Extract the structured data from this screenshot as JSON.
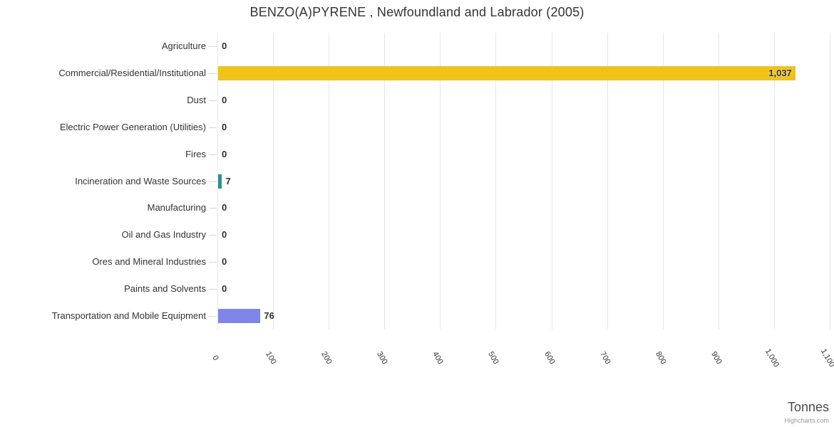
{
  "header": {
    "title": "BENZO(A)PYRENE , Newfoundland and Labrador (2005)"
  },
  "footer": {
    "axis_title": "Tonnes",
    "credit": "Highcharts.com"
  },
  "chart_data": {
    "type": "bar",
    "orientation": "horizontal",
    "title": "BENZO(A)PYRENE , Newfoundland and Labrador (2005)",
    "categories": [
      "Agriculture",
      "Commercial/Residential/Institutional",
      "Dust",
      "Electric Power Generation (Utilities)",
      "Fires",
      "Incineration and Waste Sources",
      "Manufacturing",
      "Oil and Gas Industry",
      "Ores and Mineral Industries",
      "Paints and Solvents",
      "Transportation and Mobile Equipment"
    ],
    "values": [
      0,
      1037,
      0,
      0,
      0,
      7,
      0,
      0,
      0,
      0,
      76
    ],
    "data_labels": [
      "0",
      "1,037",
      "0",
      "0",
      "0",
      "7",
      "0",
      "0",
      "0",
      "0",
      "76"
    ],
    "point_colors": [
      null,
      "#efc318",
      null,
      null,
      null,
      "#2b908f",
      null,
      null,
      null,
      null,
      "#8085e9"
    ],
    "xlabel": "Tonnes",
    "ylabel": "",
    "xlim": [
      0,
      1100
    ],
    "x_ticks": [
      0,
      100,
      200,
      300,
      400,
      500,
      600,
      700,
      800,
      900,
      1000,
      1100
    ],
    "x_tick_labels": [
      "0",
      "100",
      "200",
      "300",
      "400",
      "500",
      "600",
      "700",
      "800",
      "900",
      "1,000",
      "1,100"
    ],
    "x_tick_label_rotation_deg": 60,
    "grid": "vertical-only",
    "legend": "none",
    "colors": {
      "grid": "#e6e6e6",
      "axis_line": "#ccd6eb",
      "text": "#333333",
      "axis_title_text": "#4a4a4a",
      "credit_text": "#999999",
      "default_bar": "#7cb5ec"
    }
  }
}
